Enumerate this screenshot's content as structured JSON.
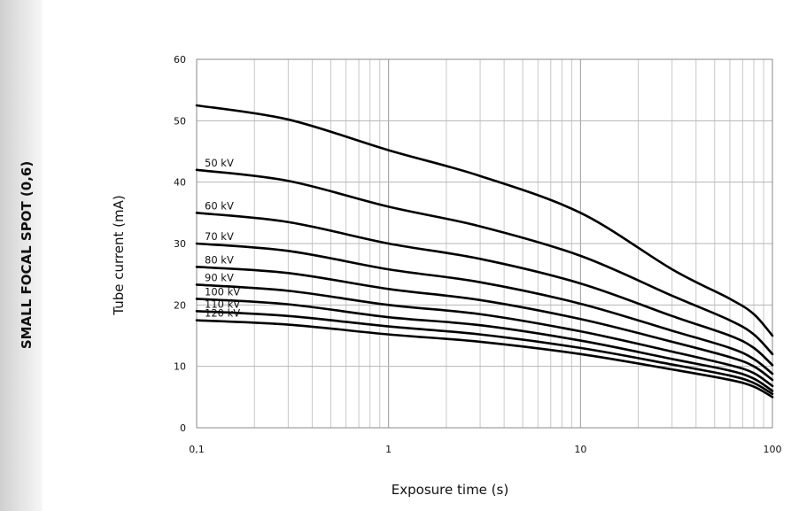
{
  "side_title": "SMALL FOCAL SPOT (0,6)",
  "chart_data": {
    "type": "line",
    "title": "",
    "xlabel": "Exposure time (s)",
    "ylabel": "Tube current (mA)",
    "xscale": "log",
    "xlim": [
      0.1,
      100
    ],
    "ylim": [
      0,
      60
    ],
    "x_ticks": [
      {
        "value": 0.1,
        "label": "0,1"
      },
      {
        "value": 1,
        "label": "1"
      },
      {
        "value": 10,
        "label": "10"
      },
      {
        "value": 100,
        "label": "100"
      }
    ],
    "y_ticks": [
      {
        "value": 0,
        "label": "0"
      },
      {
        "value": 10,
        "label": "10"
      },
      {
        "value": 20,
        "label": "20"
      },
      {
        "value": 30,
        "label": "30"
      },
      {
        "value": 40,
        "label": "40"
      },
      {
        "value": 50,
        "label": "50"
      },
      {
        "value": 60,
        "label": "60"
      }
    ],
    "grid": true,
    "x": [
      0.1,
      0.3,
      1,
      3,
      10,
      30,
      60,
      80,
      100
    ],
    "series": [
      {
        "name": "50 kV",
        "values": [
          52.5,
          50.2,
          45.2,
          41.0,
          35.0,
          25.8,
          21.0,
          18.5,
          15.0
        ]
      },
      {
        "name": "60 kV",
        "values": [
          42.0,
          40.2,
          36.0,
          32.8,
          28.0,
          21.5,
          17.5,
          15.2,
          12.0
        ]
      },
      {
        "name": "70 kV",
        "values": [
          35.0,
          33.5,
          30.0,
          27.5,
          23.5,
          18.2,
          15.0,
          13.0,
          10.2
        ]
      },
      {
        "name": "80 kV",
        "values": [
          30.0,
          28.8,
          25.8,
          23.7,
          20.2,
          15.8,
          13.0,
          11.2,
          8.8
        ]
      },
      {
        "name": "90 kV",
        "values": [
          26.2,
          25.2,
          22.6,
          20.8,
          17.7,
          14.0,
          11.5,
          10.0,
          7.8
        ]
      },
      {
        "name": "100 kV",
        "values": [
          23.3,
          22.3,
          20.0,
          18.5,
          15.7,
          12.4,
          10.2,
          8.9,
          6.8
        ]
      },
      {
        "name": "110 kV",
        "values": [
          21.0,
          20.1,
          18.0,
          16.7,
          14.2,
          11.2,
          9.3,
          8.0,
          6.0
        ]
      },
      {
        "name": "120 kV",
        "values": [
          19.0,
          18.2,
          16.5,
          15.2,
          13.0,
          10.3,
          8.5,
          7.3,
          5.5
        ]
      },
      {
        "name": "",
        "values": [
          17.5,
          16.8,
          15.2,
          14.0,
          12.0,
          9.5,
          7.8,
          6.7,
          5.0
        ]
      }
    ]
  }
}
